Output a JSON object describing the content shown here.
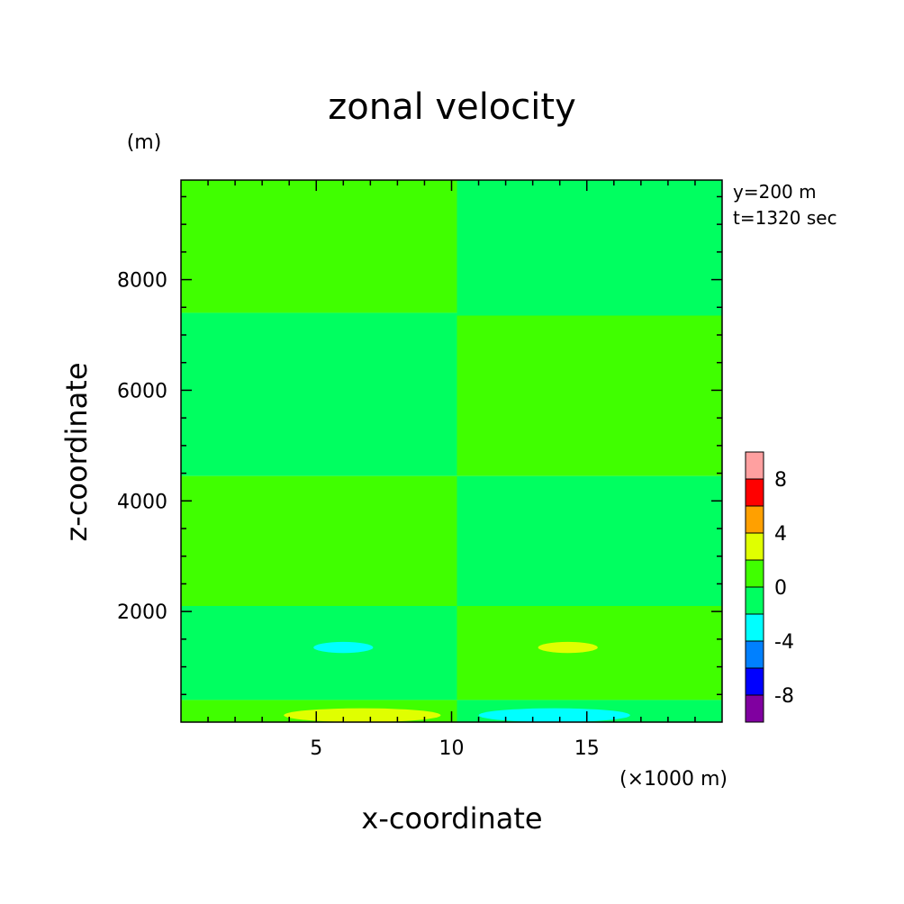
{
  "chart_data": {
    "type": "heatmap",
    "title": "zonal velocity",
    "xlabel": "x-coordinate",
    "ylabel": "z-coordinate",
    "x_unit": "(×1000 m)",
    "y_unit": "(m)",
    "annotations": [
      "y=200 m",
      "t=1320 sec"
    ],
    "xlim": [
      0,
      20
    ],
    "ylim": [
      0,
      9800
    ],
    "x_ticks": [
      5,
      10,
      15
    ],
    "y_ticks": [
      2000,
      4000,
      6000,
      8000
    ],
    "colorbar": {
      "boundaries": [
        -10,
        -8,
        -6,
        -4,
        -2,
        0,
        2,
        4,
        6,
        8,
        10
      ],
      "colors": [
        "#8000a0",
        "#0000ff",
        "#0080ff",
        "#00ffff",
        "#00ff60",
        "#40ff00",
        "#e0ff00",
        "#ffa000",
        "#ff0000",
        "#ffa0a0"
      ],
      "tick_labels": [
        "-8",
        "-4",
        "0",
        "4",
        "8"
      ],
      "tick_values": [
        -8,
        -4,
        0,
        4,
        8
      ]
    },
    "regions": [
      {
        "x": [
          0,
          10.2
        ],
        "z": [
          7400,
          9800
        ],
        "level": "0 to 2"
      },
      {
        "x": [
          10.2,
          20
        ],
        "z": [
          7350,
          9800
        ],
        "level": "-2 to 0"
      },
      {
        "x": [
          0,
          10.2
        ],
        "z": [
          4450,
          7400
        ],
        "level": "-2 to 0"
      },
      {
        "x": [
          10.2,
          20
        ],
        "z": [
          4450,
          7350
        ],
        "level": "0 to 2"
      },
      {
        "x": [
          0,
          10.2
        ],
        "z": [
          2100,
          4450
        ],
        "level": "0 to 2"
      },
      {
        "x": [
          10.2,
          20
        ],
        "z": [
          2100,
          4450
        ],
        "level": "-2 to 0"
      },
      {
        "x": [
          0,
          10.2
        ],
        "z": [
          400,
          2100
        ],
        "level": "-2 to 0"
      },
      {
        "x": [
          10.2,
          20
        ],
        "z": [
          400,
          2100
        ],
        "level": "0 to 2"
      },
      {
        "x": [
          0,
          10.2
        ],
        "z": [
          0,
          400
        ],
        "level": "0 to 2"
      },
      {
        "x": [
          10.2,
          20
        ],
        "z": [
          0,
          400
        ],
        "level": "-2 to 0"
      },
      {
        "x": [
          4.9,
          7.1
        ],
        "z": [
          1250,
          1450
        ],
        "level": "-4 to -2"
      },
      {
        "x": [
          13.2,
          15.4
        ],
        "z": [
          1250,
          1450
        ],
        "level": "2 to 4"
      },
      {
        "x": [
          3.8,
          9.6
        ],
        "z": [
          0,
          250
        ],
        "level": "2 to 4"
      },
      {
        "x": [
          11.0,
          16.6
        ],
        "z": [
          0,
          250
        ],
        "level": "-4 to -2"
      }
    ]
  }
}
